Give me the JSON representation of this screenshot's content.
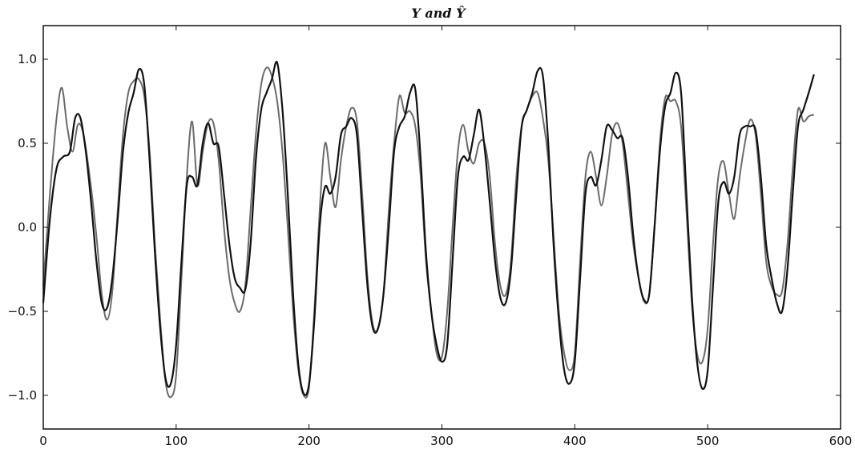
{
  "chart_data": {
    "type": "line",
    "title": "Y and Ŷ",
    "xlabel": "",
    "ylabel": "",
    "xlim": [
      0,
      600
    ],
    "ylim": [
      -1.2,
      1.2
    ],
    "xticks": [
      0,
      100,
      200,
      300,
      400,
      500,
      600
    ],
    "xtick_labels": [
      "0",
      "100",
      "200",
      "300",
      "400",
      "500",
      "600"
    ],
    "yticks": [
      -1.0,
      -0.5,
      0.0,
      0.5,
      1.0
    ],
    "ytick_labels": [
      "−1.0",
      "−0.5",
      "0.0",
      "0.5",
      "1.0"
    ],
    "grid": false,
    "legend": false,
    "series": [
      {
        "color": "#6b6b6b",
        "x": [
          0,
          5,
          10,
          14,
          18,
          22,
          26,
          30,
          35,
          40,
          44,
          48,
          52,
          56,
          60,
          64,
          68,
          72,
          76,
          80,
          84,
          88,
          92,
          96,
          100,
          104,
          108,
          112,
          116,
          120,
          124,
          128,
          132,
          136,
          140,
          144,
          148,
          152,
          156,
          160,
          164,
          168,
          172,
          176,
          180,
          184,
          188,
          192,
          196,
          200,
          204,
          208,
          212,
          216,
          220,
          224,
          228,
          232,
          236,
          240,
          244,
          248,
          252,
          256,
          260,
          264,
          268,
          272,
          276,
          280,
          284,
          288,
          292,
          296,
          300,
          304,
          308,
          312,
          316,
          320,
          324,
          328,
          332,
          336,
          340,
          344,
          348,
          352,
          356,
          360,
          364,
          368,
          372,
          376,
          380,
          384,
          388,
          392,
          396,
          400,
          404,
          408,
          412,
          416,
          420,
          424,
          428,
          432,
          436,
          440,
          444,
          448,
          452,
          456,
          460,
          464,
          468,
          472,
          476,
          480,
          484,
          488,
          492,
          496,
          500,
          504,
          508,
          512,
          516,
          520,
          524,
          528,
          532,
          536,
          540,
          544,
          548,
          552,
          556,
          560,
          564,
          568,
          572,
          576,
          580
        ],
        "y": [
          -0.35,
          0.2,
          0.65,
          0.83,
          0.6,
          0.45,
          0.61,
          0.56,
          0.3,
          -0.05,
          -0.4,
          -0.55,
          -0.38,
          0.1,
          0.55,
          0.8,
          0.87,
          0.88,
          0.78,
          0.45,
          -0.1,
          -0.55,
          -0.92,
          -1.01,
          -0.88,
          -0.3,
          0.3,
          0.63,
          0.25,
          0.45,
          0.62,
          0.62,
          0.4,
          0.0,
          -0.3,
          -0.45,
          -0.5,
          -0.35,
          0.1,
          0.55,
          0.85,
          0.95,
          0.9,
          0.75,
          0.45,
          0.0,
          -0.5,
          -0.85,
          -1.0,
          -0.95,
          -0.5,
          0.1,
          0.5,
          0.3,
          0.12,
          0.4,
          0.6,
          0.71,
          0.63,
          0.2,
          -0.3,
          -0.58,
          -0.6,
          -0.4,
          0.1,
          0.5,
          0.78,
          0.68,
          0.69,
          0.6,
          0.3,
          -0.2,
          -0.5,
          -0.75,
          -0.77,
          -0.5,
          0.0,
          0.45,
          0.61,
          0.45,
          0.38,
          0.5,
          0.5,
          0.3,
          -0.1,
          -0.35,
          -0.4,
          -0.2,
          0.3,
          0.6,
          0.7,
          0.78,
          0.8,
          0.65,
          0.4,
          -0.05,
          -0.5,
          -0.75,
          -0.85,
          -0.75,
          -0.2,
          0.3,
          0.45,
          0.3,
          0.13,
          0.3,
          0.55,
          0.62,
          0.5,
          0.2,
          -0.1,
          -0.3,
          -0.44,
          -0.4,
          0.0,
          0.5,
          0.77,
          0.75,
          0.75,
          0.6,
          0.1,
          -0.45,
          -0.75,
          -0.8,
          -0.6,
          -0.1,
          0.3,
          0.39,
          0.2,
          0.05,
          0.3,
          0.5,
          0.64,
          0.55,
          0.2,
          -0.2,
          -0.35,
          -0.4,
          -0.38,
          -0.1,
          0.35,
          0.7,
          0.63,
          0.66,
          0.67
        ]
      },
      {
        "color": "#111111",
        "x": [
          0,
          5,
          10,
          15,
          20,
          24,
          28,
          32,
          36,
          40,
          44,
          48,
          52,
          56,
          60,
          64,
          68,
          72,
          76,
          80,
          84,
          88,
          92,
          96,
          100,
          104,
          108,
          112,
          116,
          120,
          124,
          128,
          132,
          136,
          140,
          144,
          148,
          152,
          156,
          160,
          164,
          168,
          172,
          176,
          180,
          184,
          188,
          192,
          196,
          200,
          204,
          208,
          212,
          216,
          220,
          224,
          228,
          232,
          236,
          240,
          244,
          248,
          252,
          256,
          260,
          264,
          268,
          272,
          276,
          280,
          284,
          288,
          292,
          296,
          300,
          304,
          308,
          312,
          316,
          320,
          324,
          328,
          332,
          336,
          340,
          344,
          348,
          352,
          356,
          360,
          364,
          368,
          372,
          376,
          380,
          384,
          388,
          392,
          396,
          400,
          404,
          408,
          412,
          416,
          420,
          424,
          428,
          432,
          436,
          440,
          444,
          448,
          452,
          456,
          460,
          464,
          468,
          472,
          476,
          480,
          484,
          488,
          492,
          496,
          500,
          504,
          508,
          512,
          516,
          520,
          524,
          528,
          532,
          536,
          540,
          544,
          548,
          552,
          556,
          560,
          564,
          568,
          572,
          576,
          580
        ],
        "y": [
          -0.45,
          0.05,
          0.35,
          0.42,
          0.45,
          0.65,
          0.65,
          0.45,
          0.15,
          -0.2,
          -0.45,
          -0.48,
          -0.3,
          0.05,
          0.45,
          0.68,
          0.8,
          0.94,
          0.85,
          0.4,
          -0.15,
          -0.6,
          -0.9,
          -0.93,
          -0.7,
          -0.2,
          0.25,
          0.3,
          0.25,
          0.5,
          0.62,
          0.5,
          0.48,
          0.2,
          -0.1,
          -0.3,
          -0.36,
          -0.37,
          -0.1,
          0.4,
          0.7,
          0.8,
          0.88,
          0.98,
          0.7,
          0.2,
          -0.4,
          -0.82,
          -0.99,
          -0.93,
          -0.55,
          0.0,
          0.24,
          0.2,
          0.3,
          0.55,
          0.6,
          0.65,
          0.55,
          0.1,
          -0.35,
          -0.6,
          -0.6,
          -0.4,
          0.0,
          0.45,
          0.6,
          0.66,
          0.8,
          0.82,
          0.4,
          -0.15,
          -0.5,
          -0.7,
          -0.8,
          -0.7,
          -0.2,
          0.3,
          0.42,
          0.4,
          0.55,
          0.7,
          0.48,
          0.15,
          -0.2,
          -0.42,
          -0.45,
          -0.25,
          0.2,
          0.6,
          0.7,
          0.8,
          0.93,
          0.9,
          0.5,
          -0.1,
          -0.55,
          -0.85,
          -0.93,
          -0.8,
          -0.3,
          0.2,
          0.3,
          0.25,
          0.4,
          0.6,
          0.58,
          0.53,
          0.53,
          0.3,
          -0.05,
          -0.3,
          -0.43,
          -0.4,
          0.0,
          0.45,
          0.72,
          0.8,
          0.92,
          0.8,
          0.2,
          -0.4,
          -0.8,
          -0.96,
          -0.85,
          -0.35,
          0.15,
          0.27,
          0.2,
          0.3,
          0.55,
          0.6,
          0.6,
          0.58,
          0.3,
          -0.1,
          -0.3,
          -0.45,
          -0.5,
          -0.25,
          0.2,
          0.6,
          0.7,
          0.8,
          0.91
        ]
      }
    ]
  }
}
